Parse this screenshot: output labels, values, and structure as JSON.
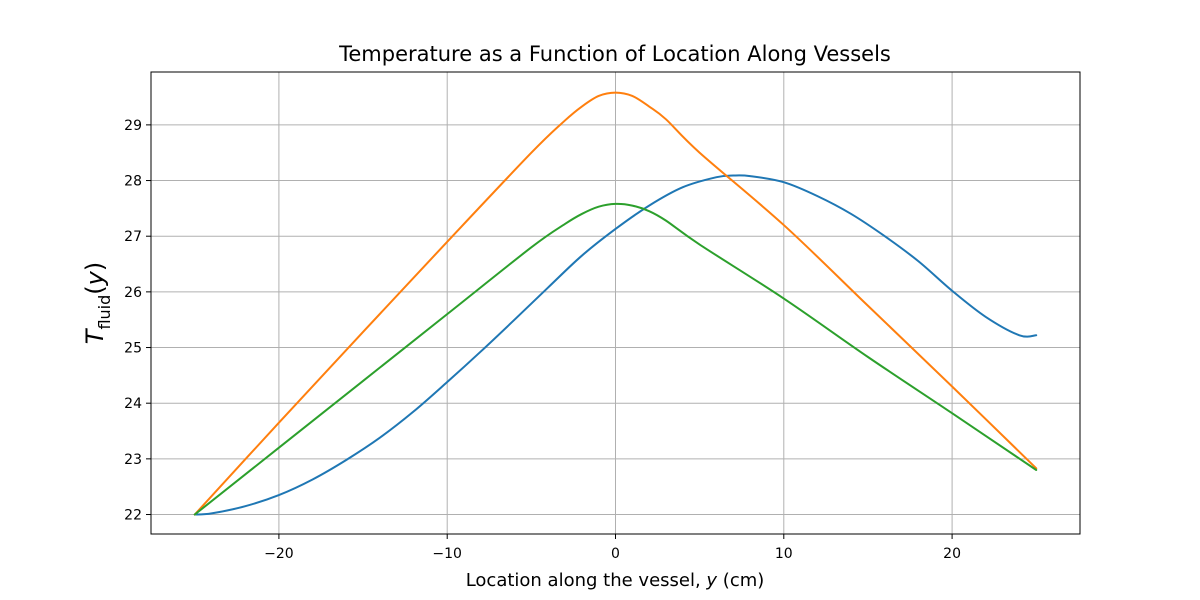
{
  "chart_data": {
    "type": "line",
    "title": "Temperature as a Function of Location Along Vessels",
    "xlabel": {
      "prefix": "Location along the vessel, ",
      "var": "y",
      "suffix": " (cm)"
    },
    "ylabel": {
      "main": "T",
      "sub": "fluid",
      "open": "(",
      "var": "y",
      "close": ")"
    },
    "xlim": [
      -27.6,
      27.6
    ],
    "ylim": [
      21.65,
      29.95
    ],
    "xticks": [
      -20,
      -10,
      0,
      10,
      20
    ],
    "xtick_labels": [
      "−20",
      "−10",
      "0",
      "10",
      "20"
    ],
    "yticks": [
      22,
      23,
      24,
      25,
      26,
      27,
      28,
      29
    ],
    "ytick_labels": [
      "22",
      "23",
      "24",
      "25",
      "26",
      "27",
      "28",
      "29"
    ],
    "grid": true,
    "colors": [
      "#1f77b4",
      "#ff7f0e",
      "#2ca02c"
    ],
    "series": [
      {
        "x": [
          -25,
          -24,
          -22,
          -20,
          -18,
          -16,
          -14,
          -12,
          -10,
          -8,
          -6,
          -4,
          -2,
          0,
          2,
          4,
          6,
          7,
          8,
          10,
          12,
          14,
          16,
          18,
          20,
          22,
          24,
          25
        ],
        "values": [
          22.0,
          22.02,
          22.15,
          22.35,
          22.63,
          22.98,
          23.38,
          23.85,
          24.38,
          24.93,
          25.5,
          26.08,
          26.65,
          27.13,
          27.55,
          27.88,
          28.06,
          28.09,
          28.08,
          27.97,
          27.72,
          27.4,
          27.0,
          26.55,
          26.02,
          25.55,
          25.22,
          25.22
        ]
      },
      {
        "x": [
          -25,
          -20,
          -15,
          -10,
          -5,
          -3,
          -2,
          -1,
          0,
          1,
          2,
          3,
          5,
          10,
          15,
          20,
          25
        ],
        "values": [
          22.0,
          23.65,
          25.28,
          26.9,
          28.5,
          29.08,
          29.33,
          29.52,
          29.58,
          29.52,
          29.33,
          29.1,
          28.5,
          27.2,
          25.75,
          24.3,
          22.83
        ]
      },
      {
        "x": [
          -25,
          -20,
          -15,
          -10,
          -5,
          -3,
          -2,
          -1,
          0,
          1,
          2,
          3,
          5,
          10,
          15,
          20,
          25
        ],
        "values": [
          22.0,
          23.2,
          24.4,
          25.6,
          26.8,
          27.22,
          27.4,
          27.53,
          27.58,
          27.55,
          27.45,
          27.28,
          26.85,
          25.88,
          24.83,
          23.82,
          22.8
        ]
      }
    ]
  }
}
